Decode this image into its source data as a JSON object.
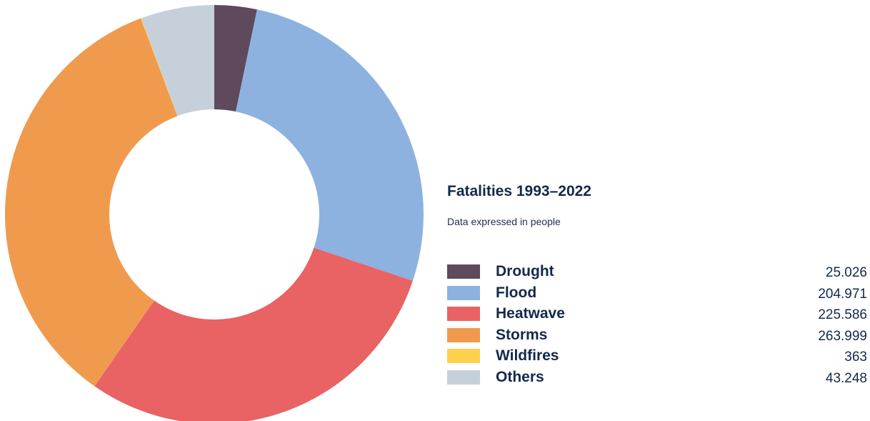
{
  "chart_data": {
    "type": "pie",
    "title": "Fatalities 1993–2022",
    "subtitle": "Data expressed in people",
    "series": [
      {
        "name": "Drought",
        "value": 25026,
        "label": "25.026",
        "color": "#5e4a5c"
      },
      {
        "name": "Flood",
        "value": 204971,
        "label": "204.971",
        "color": "#8db2df"
      },
      {
        "name": "Heatwave",
        "value": 225586,
        "label": "225.586",
        "color": "#e96264"
      },
      {
        "name": "Storms",
        "value": 263999,
        "label": "263.999",
        "color": "#f09a4e"
      },
      {
        "name": "Wildfires",
        "value": 363,
        "label": "363",
        "color": "#ffd04d"
      },
      {
        "name": "Others",
        "value": 43248,
        "label": "43.248",
        "color": "#c6d0db"
      }
    ]
  }
}
